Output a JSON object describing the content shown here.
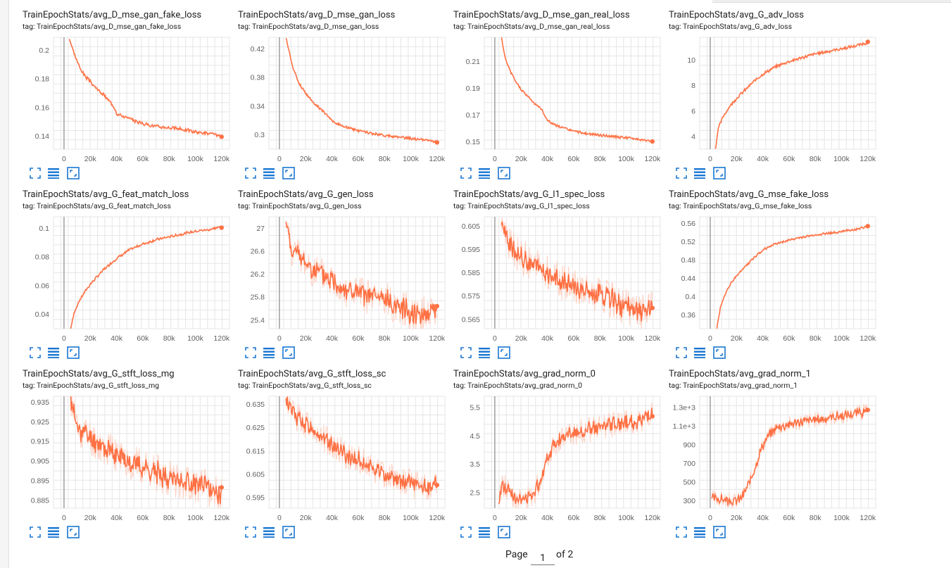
{
  "colors": {
    "line": "#ff7043",
    "smooth_band": "#ffccbc",
    "grid": "#e6e6e6",
    "axis": "#9e9e9e",
    "tick_text": "#616161",
    "icon": "#1976d2"
  },
  "toolbar": {
    "fullscreen_icon": "fullscreen-icon",
    "data_table_icon": "data-table-icon",
    "fit_domain_icon": "fit-domain-icon"
  },
  "pagination": {
    "page_label": "Page",
    "current_page": "1",
    "of_label": "of 2"
  },
  "chart_data": [
    {
      "type": "line",
      "title": "TrainEpochStats/avg_D_mse_gan_fake_loss",
      "tag": "tag: TrainEpochStats/avg_D_mse_gan_fake_loss",
      "xlim": [
        -8000,
        126000
      ],
      "ylim": [
        0.131,
        0.209
      ],
      "xticks": [
        0,
        20000,
        40000,
        60000,
        80000,
        100000,
        120000
      ],
      "xtick_labels": [
        "0",
        "20k",
        "40k",
        "60k",
        "80k",
        "100k",
        "120k"
      ],
      "yticks": [
        0.14,
        0.16,
        0.18,
        0.2
      ],
      "ytick_labels": [
        "0.14",
        "0.16",
        "0.18",
        "0.2"
      ],
      "x": [
        4000,
        8000,
        12000,
        16000,
        20000,
        25000,
        30000,
        35000,
        38000,
        39500,
        40000,
        45000,
        50000,
        60000,
        70000,
        80000,
        90000,
        100000,
        110000,
        120000
      ],
      "y": [
        0.208,
        0.197,
        0.188,
        0.182,
        0.178,
        0.173,
        0.169,
        0.164,
        0.161,
        0.158,
        0.156,
        0.154,
        0.152,
        0.149,
        0.147,
        0.146,
        0.145,
        0.143,
        0.142,
        0.14
      ],
      "noise": 0.0012
    },
    {
      "type": "line",
      "title": "TrainEpochStats/avg_D_mse_gan_loss",
      "tag": "tag: TrainEpochStats/avg_D_mse_gan_loss",
      "xlim": [
        -8000,
        126000
      ],
      "ylim": [
        0.28,
        0.436
      ],
      "xticks": [
        0,
        20000,
        40000,
        60000,
        80000,
        100000,
        120000
      ],
      "xtick_labels": [
        "0",
        "20k",
        "40k",
        "60k",
        "80k",
        "100k",
        "120k"
      ],
      "yticks": [
        0.3,
        0.34,
        0.38,
        0.42
      ],
      "ytick_labels": [
        "0.3",
        "0.34",
        "0.38",
        "0.42"
      ],
      "x": [
        5000,
        10000,
        15000,
        20000,
        25000,
        30000,
        35000,
        38000,
        40000,
        45000,
        50000,
        60000,
        70000,
        80000,
        90000,
        100000,
        110000,
        120000
      ],
      "y": [
        0.436,
        0.395,
        0.372,
        0.358,
        0.347,
        0.338,
        0.33,
        0.325,
        0.319,
        0.315,
        0.311,
        0.306,
        0.302,
        0.299,
        0.297,
        0.295,
        0.293,
        0.29
      ],
      "noise": 0.0018
    },
    {
      "type": "line",
      "title": "TrainEpochStats/avg_D_mse_gan_real_loss",
      "tag": "tag: TrainEpochStats/avg_D_mse_gan_real_loss",
      "xlim": [
        -8000,
        126000
      ],
      "ylim": [
        0.1445,
        0.228
      ],
      "xticks": [
        0,
        20000,
        40000,
        60000,
        80000,
        100000,
        120000
      ],
      "xtick_labels": [
        "0",
        "20k",
        "40k",
        "60k",
        "80k",
        "100k",
        "120k"
      ],
      "yticks": [
        0.15,
        0.17,
        0.19,
        0.21
      ],
      "ytick_labels": [
        "0.15",
        "0.17",
        "0.19",
        "0.21"
      ],
      "x": [
        5000,
        8000,
        12000,
        16000,
        20000,
        25000,
        30000,
        35000,
        38000,
        40000,
        45000,
        50000,
        60000,
        70000,
        80000,
        90000,
        100000,
        110000,
        120000
      ],
      "y": [
        0.228,
        0.212,
        0.202,
        0.195,
        0.189,
        0.184,
        0.179,
        0.175,
        0.17,
        0.166,
        0.163,
        0.161,
        0.158,
        0.156,
        0.155,
        0.154,
        0.153,
        0.152,
        0.15
      ],
      "noise": 0.0009
    },
    {
      "type": "line",
      "title": "TrainEpochStats/avg_G_adv_loss",
      "tag": "tag: TrainEpochStats/avg_G_adv_loss",
      "xlim": [
        -8000,
        126000
      ],
      "ylim": [
        3.0,
        11.8
      ],
      "xticks": [
        0,
        20000,
        40000,
        60000,
        80000,
        100000,
        120000
      ],
      "xtick_labels": [
        "0",
        "20k",
        "40k",
        "60k",
        "80k",
        "100k",
        "120k"
      ],
      "yticks": [
        4,
        6,
        8,
        10
      ],
      "ytick_labels": [
        "4",
        "6",
        "8",
        "10"
      ],
      "x": [
        4000,
        6000,
        10000,
        15000,
        20000,
        25000,
        30000,
        35000,
        40000,
        45000,
        50000,
        60000,
        70000,
        80000,
        90000,
        100000,
        110000,
        120000
      ],
      "y": [
        3.0,
        4.6,
        5.6,
        6.4,
        7.0,
        7.5,
        8.0,
        8.5,
        8.9,
        9.2,
        9.5,
        9.9,
        10.2,
        10.5,
        10.7,
        10.9,
        11.1,
        11.4
      ],
      "noise": 0.12
    },
    {
      "type": "line",
      "title": "TrainEpochStats/avg_G_feat_match_loss",
      "tag": "tag: TrainEpochStats/avg_G_feat_match_loss",
      "xlim": [
        -8000,
        126000
      ],
      "ylim": [
        0.03,
        0.108
      ],
      "xticks": [
        0,
        20000,
        40000,
        60000,
        80000,
        100000,
        120000
      ],
      "xtick_labels": [
        "0",
        "20k",
        "40k",
        "60k",
        "80k",
        "100k",
        "120k"
      ],
      "yticks": [
        0.04,
        0.06,
        0.08,
        0.1
      ],
      "ytick_labels": [
        "0.04",
        "0.06",
        "0.08",
        "0.1"
      ],
      "x": [
        5000,
        8000,
        12000,
        16000,
        20000,
        25000,
        30000,
        35000,
        40000,
        45000,
        50000,
        60000,
        70000,
        80000,
        90000,
        100000,
        110000,
        120000
      ],
      "y": [
        0.03,
        0.042,
        0.05,
        0.056,
        0.061,
        0.066,
        0.071,
        0.075,
        0.079,
        0.082,
        0.085,
        0.089,
        0.092,
        0.094,
        0.096,
        0.098,
        0.099,
        0.101
      ],
      "noise": 0.0009
    },
    {
      "type": "line",
      "title": "TrainEpochStats/avg_G_gen_loss",
      "tag": "tag: TrainEpochStats/avg_G_gen_loss",
      "xlim": [
        -8000,
        126000
      ],
      "ylim": [
        25.25,
        27.2
      ],
      "xticks": [
        0,
        20000,
        40000,
        60000,
        80000,
        100000,
        120000
      ],
      "xtick_labels": [
        "0",
        "20k",
        "40k",
        "60k",
        "80k",
        "100k",
        "120k"
      ],
      "yticks": [
        25.4,
        25.8,
        26.2,
        26.6,
        27
      ],
      "ytick_labels": [
        "25.4",
        "25.8",
        "26.2",
        "26.6",
        "27"
      ],
      "x": [
        5000,
        10000,
        20000,
        30000,
        40000,
        50000,
        60000,
        70000,
        80000,
        90000,
        100000,
        110000,
        120000
      ],
      "y": [
        27.1,
        26.6,
        26.4,
        26.2,
        26.1,
        25.95,
        25.85,
        25.8,
        25.75,
        25.65,
        25.55,
        25.5,
        25.65
      ],
      "noise": 0.2
    },
    {
      "type": "line",
      "title": "TrainEpochStats/avg_G_l1_spec_loss",
      "tag": "tag: TrainEpochStats/avg_G_l1_spec_loss",
      "xlim": [
        -8000,
        126000
      ],
      "ylim": [
        0.561,
        0.609
      ],
      "xticks": [
        0,
        20000,
        40000,
        60000,
        80000,
        100000,
        120000
      ],
      "xtick_labels": [
        "0",
        "20k",
        "40k",
        "60k",
        "80k",
        "100k",
        "120k"
      ],
      "yticks": [
        0.565,
        0.575,
        0.585,
        0.595,
        0.605
      ],
      "ytick_labels": [
        "0.565",
        "0.575",
        "0.585",
        "0.595",
        "0.605"
      ],
      "x": [
        5000,
        10000,
        20000,
        30000,
        40000,
        50000,
        60000,
        70000,
        80000,
        90000,
        100000,
        110000,
        120000
      ],
      "y": [
        0.607,
        0.597,
        0.592,
        0.588,
        0.585,
        0.581,
        0.579,
        0.577,
        0.575,
        0.573,
        0.57,
        0.568,
        0.57
      ],
      "noise": 0.005
    },
    {
      "type": "line",
      "title": "TrainEpochStats/avg_G_mse_fake_loss",
      "tag": "tag: TrainEpochStats/avg_G_mse_fake_loss",
      "xlim": [
        -8000,
        126000
      ],
      "ylim": [
        0.33,
        0.575
      ],
      "xticks": [
        0,
        20000,
        40000,
        60000,
        80000,
        100000,
        120000
      ],
      "xtick_labels": [
        "0",
        "20k",
        "40k",
        "60k",
        "80k",
        "100k",
        "120k"
      ],
      "yticks": [
        0.36,
        0.4,
        0.44,
        0.48,
        0.52,
        0.56
      ],
      "ytick_labels": [
        "0.36",
        "0.4",
        "0.44",
        "0.48",
        "0.52",
        "0.56"
      ],
      "x": [
        5000,
        8000,
        12000,
        16000,
        20000,
        25000,
        30000,
        35000,
        40000,
        45000,
        50000,
        60000,
        70000,
        80000,
        90000,
        100000,
        110000,
        120000
      ],
      "y": [
        0.33,
        0.38,
        0.41,
        0.43,
        0.445,
        0.462,
        0.476,
        0.49,
        0.502,
        0.51,
        0.516,
        0.524,
        0.53,
        0.535,
        0.539,
        0.543,
        0.547,
        0.553
      ],
      "noise": 0.0025
    },
    {
      "type": "line",
      "title": "TrainEpochStats/avg_G_stft_loss_mg",
      "tag": "tag: TrainEpochStats/avg_G_stft_loss_mg",
      "xlim": [
        -8000,
        126000
      ],
      "ylim": [
        0.881,
        0.938
      ],
      "xticks": [
        0,
        20000,
        40000,
        60000,
        80000,
        100000,
        120000
      ],
      "xtick_labels": [
        "0",
        "20k",
        "40k",
        "60k",
        "80k",
        "100k",
        "120k"
      ],
      "yticks": [
        0.885,
        0.895,
        0.905,
        0.915,
        0.925,
        0.935
      ],
      "ytick_labels": [
        "0.885",
        "0.895",
        "0.905",
        "0.915",
        "0.925",
        "0.935"
      ],
      "x": [
        5000,
        10000,
        20000,
        30000,
        40000,
        50000,
        60000,
        70000,
        80000,
        90000,
        100000,
        110000,
        120000
      ],
      "y": [
        0.937,
        0.922,
        0.917,
        0.912,
        0.908,
        0.905,
        0.902,
        0.899,
        0.897,
        0.895,
        0.893,
        0.891,
        0.888
      ],
      "noise": 0.006
    },
    {
      "type": "line",
      "title": "TrainEpochStats/avg_G_stft_loss_sc",
      "tag": "tag: TrainEpochStats/avg_G_stft_loss_sc",
      "xlim": [
        -8000,
        126000
      ],
      "ylim": [
        0.5905,
        0.6385
      ],
      "xticks": [
        0,
        20000,
        40000,
        60000,
        80000,
        100000,
        120000
      ],
      "xtick_labels": [
        "0",
        "20k",
        "40k",
        "60k",
        "80k",
        "100k",
        "120k"
      ],
      "yticks": [
        0.595,
        0.605,
        0.615,
        0.625,
        0.635
      ],
      "ytick_labels": [
        "0.595",
        "0.605",
        "0.615",
        "0.625",
        "0.635"
      ],
      "x": [
        5000,
        10000,
        20000,
        30000,
        40000,
        50000,
        60000,
        70000,
        80000,
        90000,
        100000,
        110000,
        120000
      ],
      "y": [
        0.637,
        0.631,
        0.627,
        0.622,
        0.618,
        0.614,
        0.611,
        0.608,
        0.605,
        0.603,
        0.601,
        0.599,
        0.602
      ],
      "noise": 0.004
    },
    {
      "type": "line",
      "title": "TrainEpochStats/avg_grad_norm_0",
      "tag": "tag: TrainEpochStats/avg_grad_norm_0",
      "xlim": [
        -8000,
        126000
      ],
      "ylim": [
        1.95,
        5.9
      ],
      "xticks": [
        0,
        20000,
        40000,
        60000,
        80000,
        100000,
        120000
      ],
      "xtick_labels": [
        "0",
        "20k",
        "40k",
        "60k",
        "80k",
        "100k",
        "120k"
      ],
      "yticks": [
        2.5,
        3.5,
        4.5,
        5.5
      ],
      "ytick_labels": [
        "2.5",
        "3.5",
        "4.5",
        "5.5"
      ],
      "x": [
        3000,
        5000,
        10000,
        15000,
        20000,
        25000,
        30000,
        35000,
        40000,
        45000,
        50000,
        60000,
        70000,
        80000,
        90000,
        100000,
        110000,
        120000
      ],
      "y": [
        2.0,
        2.8,
        2.6,
        2.4,
        2.2,
        2.3,
        2.5,
        3.0,
        3.8,
        4.2,
        4.4,
        4.6,
        4.7,
        4.8,
        4.9,
        5.0,
        5.0,
        5.3
      ],
      "noise": 0.28
    },
    {
      "type": "line",
      "title": "TrainEpochStats/avg_grad_norm_1",
      "tag": "tag: TrainEpochStats/avg_grad_norm_1",
      "xlim": [
        -8000,
        126000
      ],
      "ylim": [
        220,
        1420
      ],
      "xticks": [
        0,
        20000,
        40000,
        60000,
        80000,
        100000,
        120000
      ],
      "xtick_labels": [
        "0",
        "20k",
        "40k",
        "60k",
        "80k",
        "100k",
        "120k"
      ],
      "yticks": [
        300,
        500,
        700,
        900,
        1100,
        1300
      ],
      "ytick_labels": [
        "300",
        "500",
        "700",
        "900",
        "1.1e+3",
        "1.3e+3"
      ],
      "x": [
        1000,
        5000,
        10000,
        15000,
        20000,
        25000,
        30000,
        35000,
        40000,
        45000,
        50000,
        60000,
        70000,
        80000,
        90000,
        100000,
        110000,
        120000
      ],
      "y": [
        330,
        320,
        310,
        300,
        295,
        350,
        500,
        700,
        900,
        1000,
        1080,
        1120,
        1150,
        1170,
        1190,
        1210,
        1230,
        1260
      ],
      "noise": 55
    }
  ]
}
